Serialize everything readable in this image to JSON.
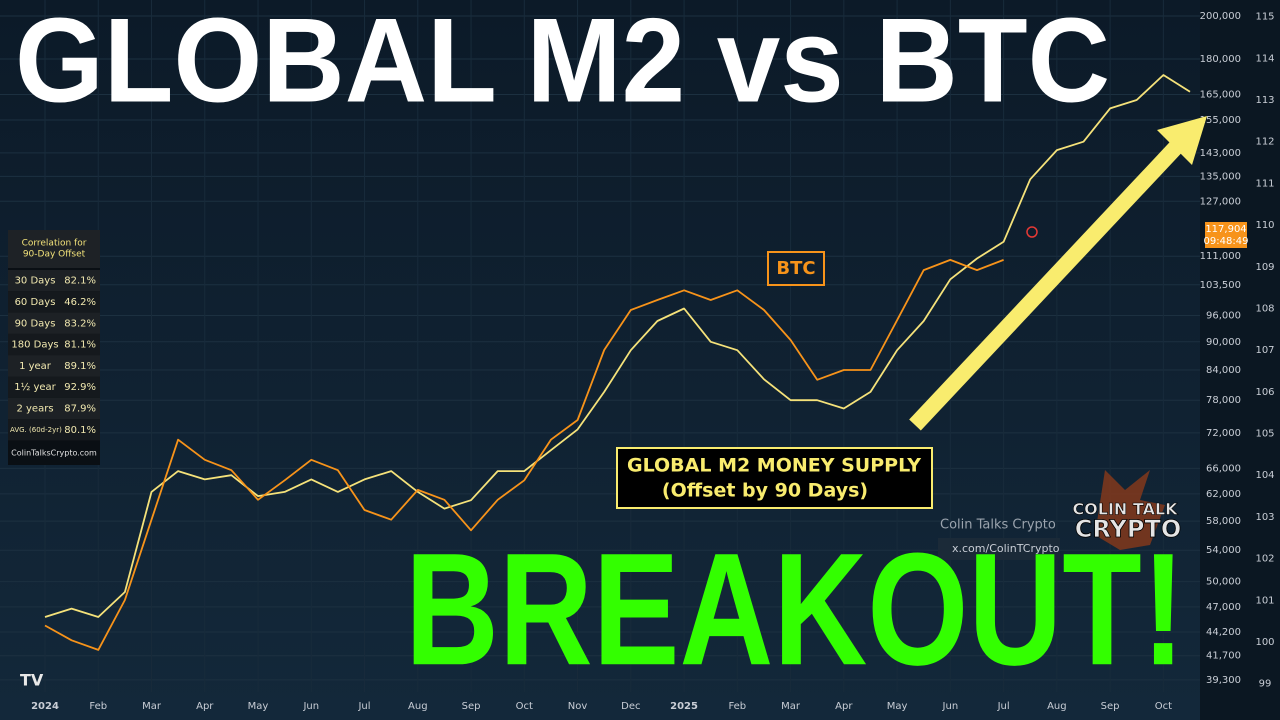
{
  "chart_data": {
    "type": "line",
    "title": "GLOBAL M2 vs BTC",
    "headline": "BREAKOUT!",
    "annotation": "(Offset by 90 Days)",
    "last_price_label": "117,904",
    "last_price_time": "09:48:49",
    "categories": [
      "2024",
      null,
      "Feb",
      null,
      "Mar",
      null,
      "Apr",
      null,
      "May",
      null,
      "Jun",
      null,
      "Jul",
      null,
      "Aug",
      null,
      "Sep",
      null,
      "Oct",
      null,
      "Nov",
      null,
      "Dec",
      null,
      "2025",
      null,
      "Feb",
      null,
      "Mar",
      null,
      "Apr",
      null,
      "May",
      null,
      "Jun",
      null,
      "Jul",
      null,
      "Aug",
      null,
      "Sep",
      null,
      "Oct",
      null
    ],
    "series": [
      {
        "name": "GLOBAL M2 MONEY SUPPLY",
        "color": "#f5e27a",
        "axis": "y2",
        "values": [
          100.6,
          100.8,
          100.6,
          101.2,
          103.6,
          104.1,
          103.9,
          104.0,
          103.5,
          103.6,
          103.9,
          103.6,
          103.9,
          104.1,
          103.6,
          103.2,
          103.4,
          104.1,
          104.1,
          104.6,
          105.1,
          106.0,
          107.0,
          107.7,
          108.0,
          107.2,
          107.0,
          106.3,
          105.8,
          105.8,
          105.6,
          106.0,
          107.0,
          107.7,
          108.7,
          109.2,
          109.6,
          111.1,
          111.8,
          112.0,
          112.8,
          113.0,
          113.6,
          113.2
        ]
      },
      {
        "name": "BTC",
        "color": "#f7931a",
        "values": [
          44900,
          43300,
          42300,
          47800,
          58200,
          70800,
          67400,
          65700,
          61100,
          64100,
          67400,
          65700,
          59600,
          58200,
          62600,
          61100,
          56700,
          61100,
          64100,
          70800,
          74300,
          88200,
          97300,
          99700,
          102100,
          99700,
          102100,
          97300,
          90400,
          82000,
          84000,
          84000,
          94900,
          107300,
          110000,
          107300,
          110000,
          null,
          null,
          null,
          null,
          null,
          null,
          null
        ]
      }
    ],
    "log_scale": true,
    "ylim": [
      38150,
      208000
    ],
    "yticks": [
      {
        "value": 39300,
        "label": "39,300"
      },
      {
        "value": 41700,
        "label": "41,700"
      },
      {
        "value": 44200,
        "label": "44,200"
      },
      {
        "value": 47000,
        "label": "47,000"
      },
      {
        "value": 50000,
        "label": "50,000"
      },
      {
        "value": 54000,
        "label": "54,000"
      },
      {
        "value": 58000,
        "label": "58,000"
      },
      {
        "value": 62000,
        "label": "62,000"
      },
      {
        "value": 66000,
        "label": "66,000"
      },
      {
        "value": 72000,
        "label": "72,000"
      },
      {
        "value": 78000,
        "label": "78,000"
      },
      {
        "value": 84000,
        "label": "84,000"
      },
      {
        "value": 90000,
        "label": "90,000"
      },
      {
        "value": 96000,
        "label": "96,000"
      },
      {
        "value": 103500,
        "label": "103,500"
      },
      {
        "value": 111000,
        "label": "111,000"
      },
      {
        "value": 127000,
        "label": "127,000"
      },
      {
        "value": 135000,
        "label": "135,000"
      },
      {
        "value": 143000,
        "label": "143,000"
      },
      {
        "value": 155000,
        "label": "155,000"
      },
      {
        "value": 165000,
        "label": "165,000"
      },
      {
        "value": 180000,
        "label": "180,000"
      },
      {
        "value": 200000,
        "label": "200,000"
      }
    ],
    "y2lim": [
      98.8,
      115.4
    ],
    "y2ticks": [
      99,
      100,
      101,
      102,
      103,
      104,
      105,
      106,
      107,
      108,
      109,
      110,
      111,
      112,
      113,
      114,
      115
    ],
    "grid": true
  },
  "correlation_table": {
    "title": [
      "Correlation for",
      "90-Day Offset"
    ],
    "rows": [
      [
        "30 Days",
        "82.1%"
      ],
      [
        "60 Days",
        "46.2%"
      ],
      [
        "90 Days",
        "83.2%"
      ],
      [
        "180 Days",
        "81.1%"
      ],
      [
        "1 year",
        "89.1%"
      ],
      [
        "1½ year",
        "92.9%"
      ],
      [
        "2 years",
        "87.9%"
      ],
      [
        "AVG. (60d-2yr)",
        "80.1%"
      ]
    ],
    "footer": "ColinTalksCrypto.com"
  },
  "branding": {
    "name": "Colin Talks Crypto",
    "handle": "x.com/ColinTCrypto",
    "logo_top": "COLIN TALK",
    "logo_bottom": "CRYPTO"
  }
}
